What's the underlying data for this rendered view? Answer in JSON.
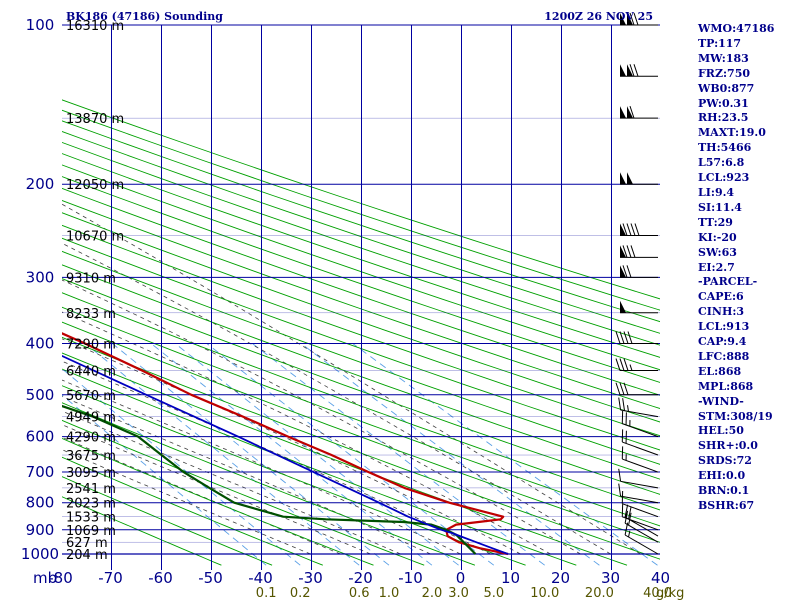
{
  "header": {
    "left_title": "BK186 (47186) Sounding",
    "right_title": "1200Z 26 NOV 25"
  },
  "pressure_unit": "mb",
  "indices": [
    "WMO:47186",
    "TP:117",
    "MW:183",
    "FRZ:750",
    "WB0:877",
    "PW:0.31",
    "RH:23.5",
    "MAXT:19.0",
    "TH:5466",
    "L57:6.8",
    "LCL:923",
    "LI:9.4",
    "SI:11.4",
    "TT:29",
    "KI:-20",
    "SW:63",
    "EI:2.7",
    "-PARCEL-",
    "CAPE:6",
    "CINH:3",
    "LCL:913",
    "CAP:9.4",
    "LFC:888",
    "EL:868",
    "MPL:868",
    "-WIND-",
    "STM:308/19",
    "HEL:50",
    "SHR+:0.0",
    "SRDS:72",
    "EHI:0.0",
    "BRN:0.1",
    "BSHR:67"
  ],
  "colors": {
    "grid": "#0000a0",
    "dry_adiabat": "#00a000",
    "moist_adiabat": "#404040",
    "mixing_ratio": "#5aa0e6",
    "temperature": "#c00000",
    "dewpoint": "#005000",
    "parcel": "#0000c0",
    "labels": "#00008b",
    "mixing_labels": "#555500"
  },
  "chart_data": {
    "type": "line",
    "chart_kind": "skew-T log-P sounding",
    "pressure_levels": [
      100,
      200,
      300,
      400,
      500,
      600,
      700,
      800,
      900,
      1000
    ],
    "temperature_ticks": [
      -80,
      -70,
      -60,
      -50,
      -40,
      -30,
      -20,
      -10,
      0,
      10,
      20,
      30,
      40
    ],
    "temperature_tick_labels": [
      "-80",
      "-70",
      "-60",
      "-50",
      "-40",
      "-30",
      "-20",
      "-10",
      "0",
      "10",
      "20",
      "30",
      "40"
    ],
    "height_labels": [
      {
        "p": 100,
        "label": "16310 m"
      },
      {
        "p": 150,
        "label": "13870 m"
      },
      {
        "p": 200,
        "label": "12050 m"
      },
      {
        "p": 250,
        "label": "10670 m"
      },
      {
        "p": 300,
        "label": "9310 m"
      },
      {
        "p": 350,
        "label": "8233 m"
      },
      {
        "p": 400,
        "label": "7290 m"
      },
      {
        "p": 450,
        "label": "6440 m"
      },
      {
        "p": 500,
        "label": "5670 m"
      },
      {
        "p": 550,
        "label": "4949 m"
      },
      {
        "p": 600,
        "label": "4290 m"
      },
      {
        "p": 650,
        "label": "3675 m"
      },
      {
        "p": 700,
        "label": "3095 m"
      },
      {
        "p": 750,
        "label": "2541 m"
      },
      {
        "p": 800,
        "label": "2023 m"
      },
      {
        "p": 850,
        "label": "1533 m"
      },
      {
        "p": 900,
        "label": "1069 m"
      },
      {
        "p": 950,
        "label": "627 m"
      },
      {
        "p": 1000,
        "label": "204 m"
      }
    ],
    "mixing_ratio_labels": [
      {
        "w": 0.1,
        "label": "0.1"
      },
      {
        "w": 0.2,
        "label": "0.2"
      },
      {
        "w": 0.6,
        "label": "0.6"
      },
      {
        "w": 1.0,
        "label": "1.0"
      },
      {
        "w": 2.0,
        "label": "2.0"
      },
      {
        "w": 3.0,
        "label": "3.0"
      },
      {
        "w": 5.0,
        "label": "5.0"
      },
      {
        "w": 10.0,
        "label": "10.0"
      },
      {
        "w": 20.0,
        "label": "20.0"
      },
      {
        "w": 40.0,
        "label": "40.0"
      }
    ],
    "mixing_ratio_unit": "g/kg",
    "series": [
      {
        "points": [
          [
            1000,
            9.5
          ],
          [
            975,
            5
          ],
          [
            950,
            2
          ],
          [
            925,
            1
          ],
          [
            900,
            2
          ],
          [
            880,
            5
          ],
          [
            870,
            10
          ],
          [
            860,
            15
          ],
          [
            850,
            16
          ],
          [
            800,
            8
          ],
          [
            750,
            2
          ],
          [
            700,
            -2
          ],
          [
            650,
            -6
          ],
          [
            600,
            -11
          ],
          [
            550,
            -16
          ],
          [
            500,
            -22
          ],
          [
            450,
            -27
          ],
          [
            400,
            -33
          ],
          [
            380,
            -36
          ],
          [
            350,
            -37
          ],
          [
            300,
            -41
          ],
          [
            250,
            -48
          ],
          [
            230,
            -50
          ],
          [
            200,
            -53
          ],
          [
            180,
            -57
          ],
          [
            160,
            -61
          ],
          [
            150,
            -63
          ],
          [
            130,
            -66
          ],
          [
            120,
            -69
          ],
          [
            110,
            -71
          ],
          [
            100,
            -67
          ]
        ]
      },
      {
        "points": [
          [
            1000,
            3
          ],
          [
            950,
            3
          ],
          [
            920,
            3
          ],
          [
            900,
            2
          ],
          [
            880,
            0
          ],
          [
            870,
            -5
          ],
          [
            860,
            -20
          ],
          [
            850,
            -28
          ],
          [
            800,
            -35
          ],
          [
            750,
            -37
          ],
          [
            700,
            -39
          ],
          [
            650,
            -40
          ],
          [
            600,
            -41
          ],
          [
            550,
            -46
          ],
          [
            520,
            -51
          ],
          [
            500,
            -54
          ],
          [
            480,
            -56
          ],
          [
            450,
            -57
          ],
          [
            400,
            -60
          ],
          [
            370,
            -61
          ],
          [
            350,
            -64
          ],
          [
            320,
            -64
          ],
          [
            300,
            -65
          ],
          [
            280,
            -67
          ],
          [
            250,
            -71
          ],
          [
            200,
            -79
          ],
          [
            150,
            -88
          ],
          [
            140,
            -90
          ]
        ]
      },
      {
        "points": [
          [
            1000,
            9.5
          ],
          [
            975,
            7.5
          ],
          [
            950,
            5.5
          ],
          [
            925,
            3.5
          ],
          [
            913,
            2.5
          ],
          [
            900,
            1
          ],
          [
            888,
            0
          ],
          [
            850,
            -3
          ],
          [
            800,
            -6
          ],
          [
            700,
            -13
          ],
          [
            600,
            -21
          ],
          [
            500,
            -31
          ],
          [
            400,
            -43
          ],
          [
            300,
            -57
          ],
          [
            250,
            -64
          ],
          [
            220,
            -69
          ]
        ]
      }
    ],
    "wind_barbs": [
      {
        "p": 1000,
        "dir": 300,
        "speed": 15
      },
      {
        "p": 950,
        "dir": 300,
        "speed": 20
      },
      {
        "p": 925,
        "dir": 300,
        "speed": 20
      },
      {
        "p": 900,
        "dir": 290,
        "speed": 15
      },
      {
        "p": 850,
        "dir": 290,
        "speed": 10
      },
      {
        "p": 800,
        "dir": 280,
        "speed": 10
      },
      {
        "p": 750,
        "dir": 280,
        "speed": 10
      },
      {
        "p": 700,
        "dir": 290,
        "speed": 15
      },
      {
        "p": 650,
        "dir": 290,
        "speed": 20
      },
      {
        "p": 600,
        "dir": 290,
        "speed": 25
      },
      {
        "p": 550,
        "dir": 280,
        "speed": 25
      },
      {
        "p": 500,
        "dir": 270,
        "speed": 30
      },
      {
        "p": 450,
        "dir": 270,
        "speed": 35
      },
      {
        "p": 400,
        "dir": 270,
        "speed": 40
      },
      {
        "p": 350,
        "dir": 270,
        "speed": 50
      },
      {
        "p": 300,
        "dir": 270,
        "speed": 70
      },
      {
        "p": 275,
        "dir": 270,
        "speed": 80
      },
      {
        "p": 250,
        "dir": 270,
        "speed": 90
      },
      {
        "p": 200,
        "dir": 270,
        "speed": 100
      },
      {
        "p": 150,
        "dir": 270,
        "speed": 110
      },
      {
        "p": 125,
        "dir": 270,
        "speed": 120
      },
      {
        "p": 100,
        "dir": 270,
        "speed": 120
      }
    ],
    "xlim": [
      -80,
      40
    ],
    "ylim": [
      1050,
      100
    ],
    "y_scale": "log",
    "x_skew": "45 degrees",
    "grid": true
  }
}
